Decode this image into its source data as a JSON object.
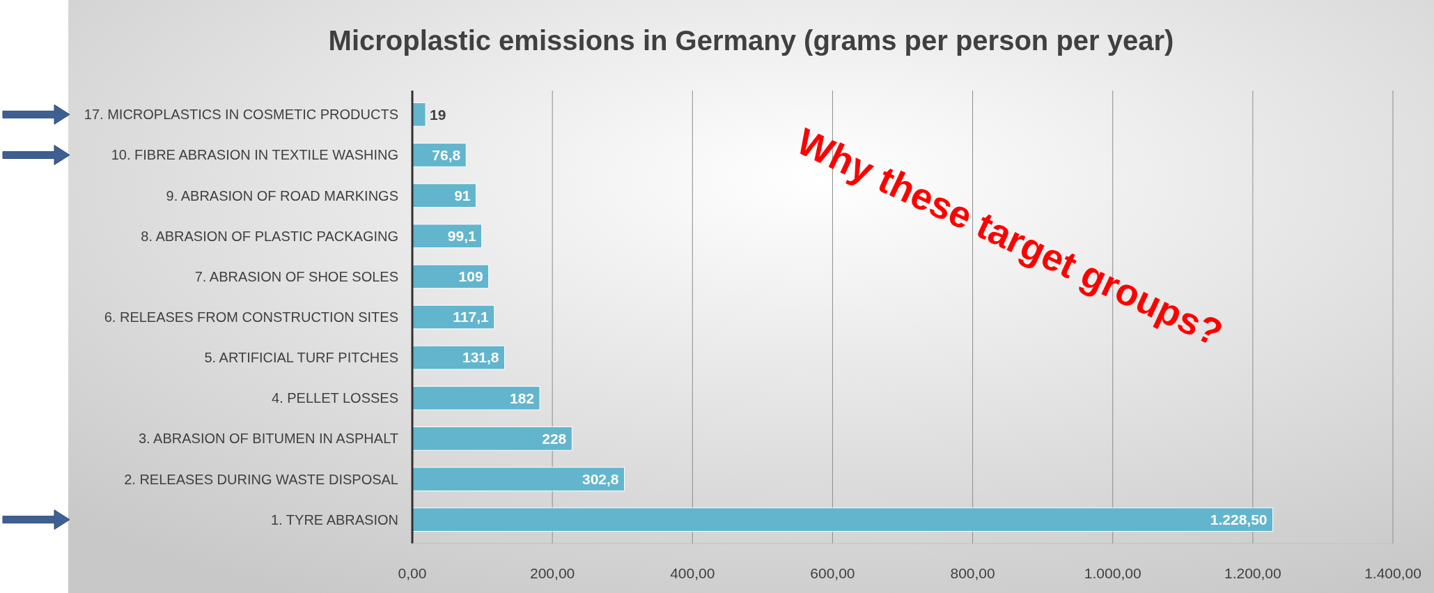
{
  "chart_data": {
    "type": "bar",
    "orientation": "horizontal",
    "title": "Microplastic emissions in Germany (grams per person per year)",
    "categories": [
      "17. MICROPLASTICS IN COSMETIC PRODUCTS",
      "10. FIBRE ABRASION IN TEXTILE WASHING",
      "9. ABRASION OF ROAD MARKINGS",
      "8. ABRASION OF PLASTIC PACKAGING",
      "7. ABRASION OF SHOE SOLES",
      "6. RELEASES FROM CONSTRUCTION SITES",
      "5. ARTIFICIAL TURF PITCHES",
      "4. PELLET LOSSES",
      "3. ABRASION OF BITUMEN IN ASPHALT",
      "2. RELEASES DURING WASTE DISPOSAL",
      "1. TYRE ABRASION"
    ],
    "values": [
      19,
      76.8,
      91,
      99.1,
      109,
      117.1,
      131.8,
      182,
      228,
      302.8,
      1228.5
    ],
    "value_labels": [
      "19",
      "76,8",
      "91",
      "99,1",
      "109",
      "117,1",
      "131,8",
      "182",
      "228",
      "302,8",
      "1.228,50"
    ],
    "color": "#62b5cc",
    "xlim": [
      0,
      1400
    ],
    "xticks": [
      {
        "value": 0,
        "label": "0,00"
      },
      {
        "value": 200,
        "label": "200,00"
      },
      {
        "value": 400,
        "label": "400,00"
      },
      {
        "value": 600,
        "label": "600,00"
      },
      {
        "value": 800,
        "label": "800,00"
      },
      {
        "value": 1000,
        "label": "1.000,00"
      },
      {
        "value": 1200,
        "label": "1.200,00"
      },
      {
        "value": 1400,
        "label": "1.400,00"
      }
    ],
    "grid": "x",
    "annotations": [
      "Why these target groups?"
    ]
  }
}
